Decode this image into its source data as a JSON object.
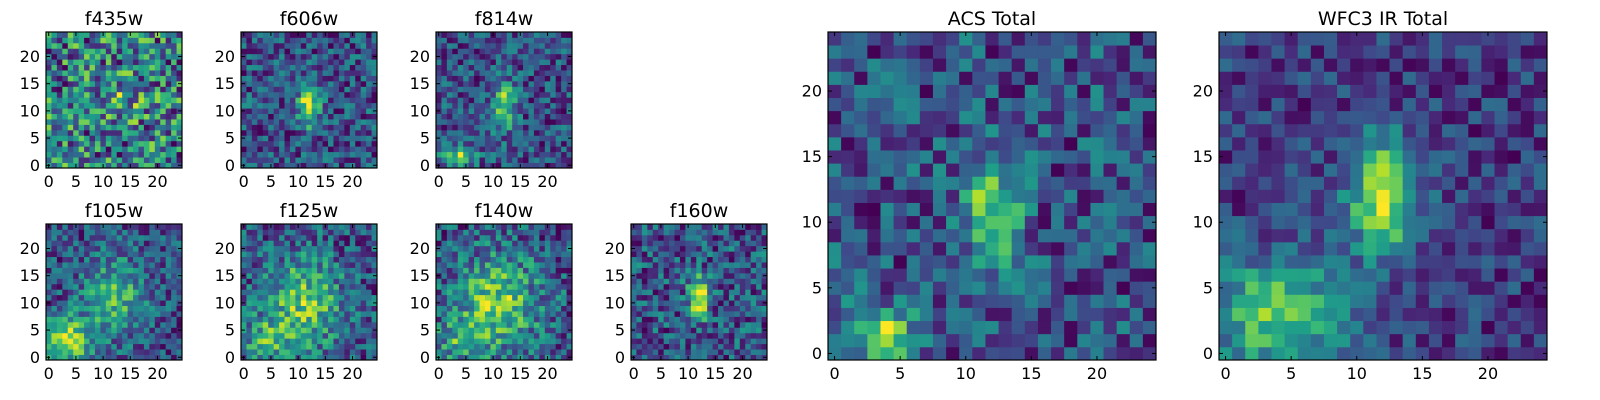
{
  "chart_data": {
    "type": "heatmap",
    "colormap": "viridis",
    "grid": false,
    "panels": [
      {
        "title": "f435w",
        "xticks": [
          "0",
          "5",
          "10",
          "15",
          "20"
        ],
        "yticks": [
          "0",
          "5",
          "10",
          "15",
          "20"
        ],
        "pattern": "noise"
      },
      {
        "title": "f606w",
        "xticks": [
          "0",
          "5",
          "10",
          "15",
          "20"
        ],
        "yticks": [
          "0",
          "5",
          "10",
          "15",
          "20"
        ],
        "pattern": "central-source"
      },
      {
        "title": "f814w",
        "xticks": [
          "0",
          "5",
          "10",
          "15",
          "20"
        ],
        "yticks": [
          "0",
          "5",
          "10",
          "15",
          "20"
        ],
        "pattern": "central-plus-corner"
      },
      {
        "title": "f105w",
        "xticks": [
          "0",
          "5",
          "10",
          "15",
          "20"
        ],
        "yticks": [
          "0",
          "5",
          "10",
          "15",
          "20"
        ],
        "pattern": "diffuse-corner"
      },
      {
        "title": "f125w",
        "xticks": [
          "0",
          "5",
          "10",
          "15",
          "20"
        ],
        "yticks": [
          "0",
          "5",
          "10",
          "15",
          "20"
        ],
        "pattern": "diffuse"
      },
      {
        "title": "f140w",
        "xticks": [
          "0",
          "5",
          "10",
          "15",
          "20"
        ],
        "yticks": [
          "0",
          "5",
          "10",
          "15",
          "20"
        ],
        "pattern": "diffuse"
      },
      {
        "title": "f160w",
        "xticks": [
          "0",
          "5",
          "10",
          "15",
          "20"
        ],
        "yticks": [
          "0",
          "5",
          "10",
          "15",
          "20"
        ],
        "pattern": "central-source"
      },
      {
        "title": "ACS Total",
        "xticks": [
          "0",
          "5",
          "10",
          "15",
          "20"
        ],
        "yticks": [
          "0",
          "5",
          "10",
          "15",
          "20"
        ],
        "pattern": "central-plus-corner"
      },
      {
        "title": "WFC3 IR Total",
        "xticks": [
          "0",
          "5",
          "10",
          "15",
          "20"
        ],
        "yticks": [
          "0",
          "5",
          "10",
          "15",
          "20"
        ],
        "pattern": "smooth-central-plus-corner"
      }
    ],
    "grid_size": 25,
    "xlim": [
      -0.5,
      24.5
    ],
    "ylim": [
      -0.5,
      24.5
    ]
  }
}
